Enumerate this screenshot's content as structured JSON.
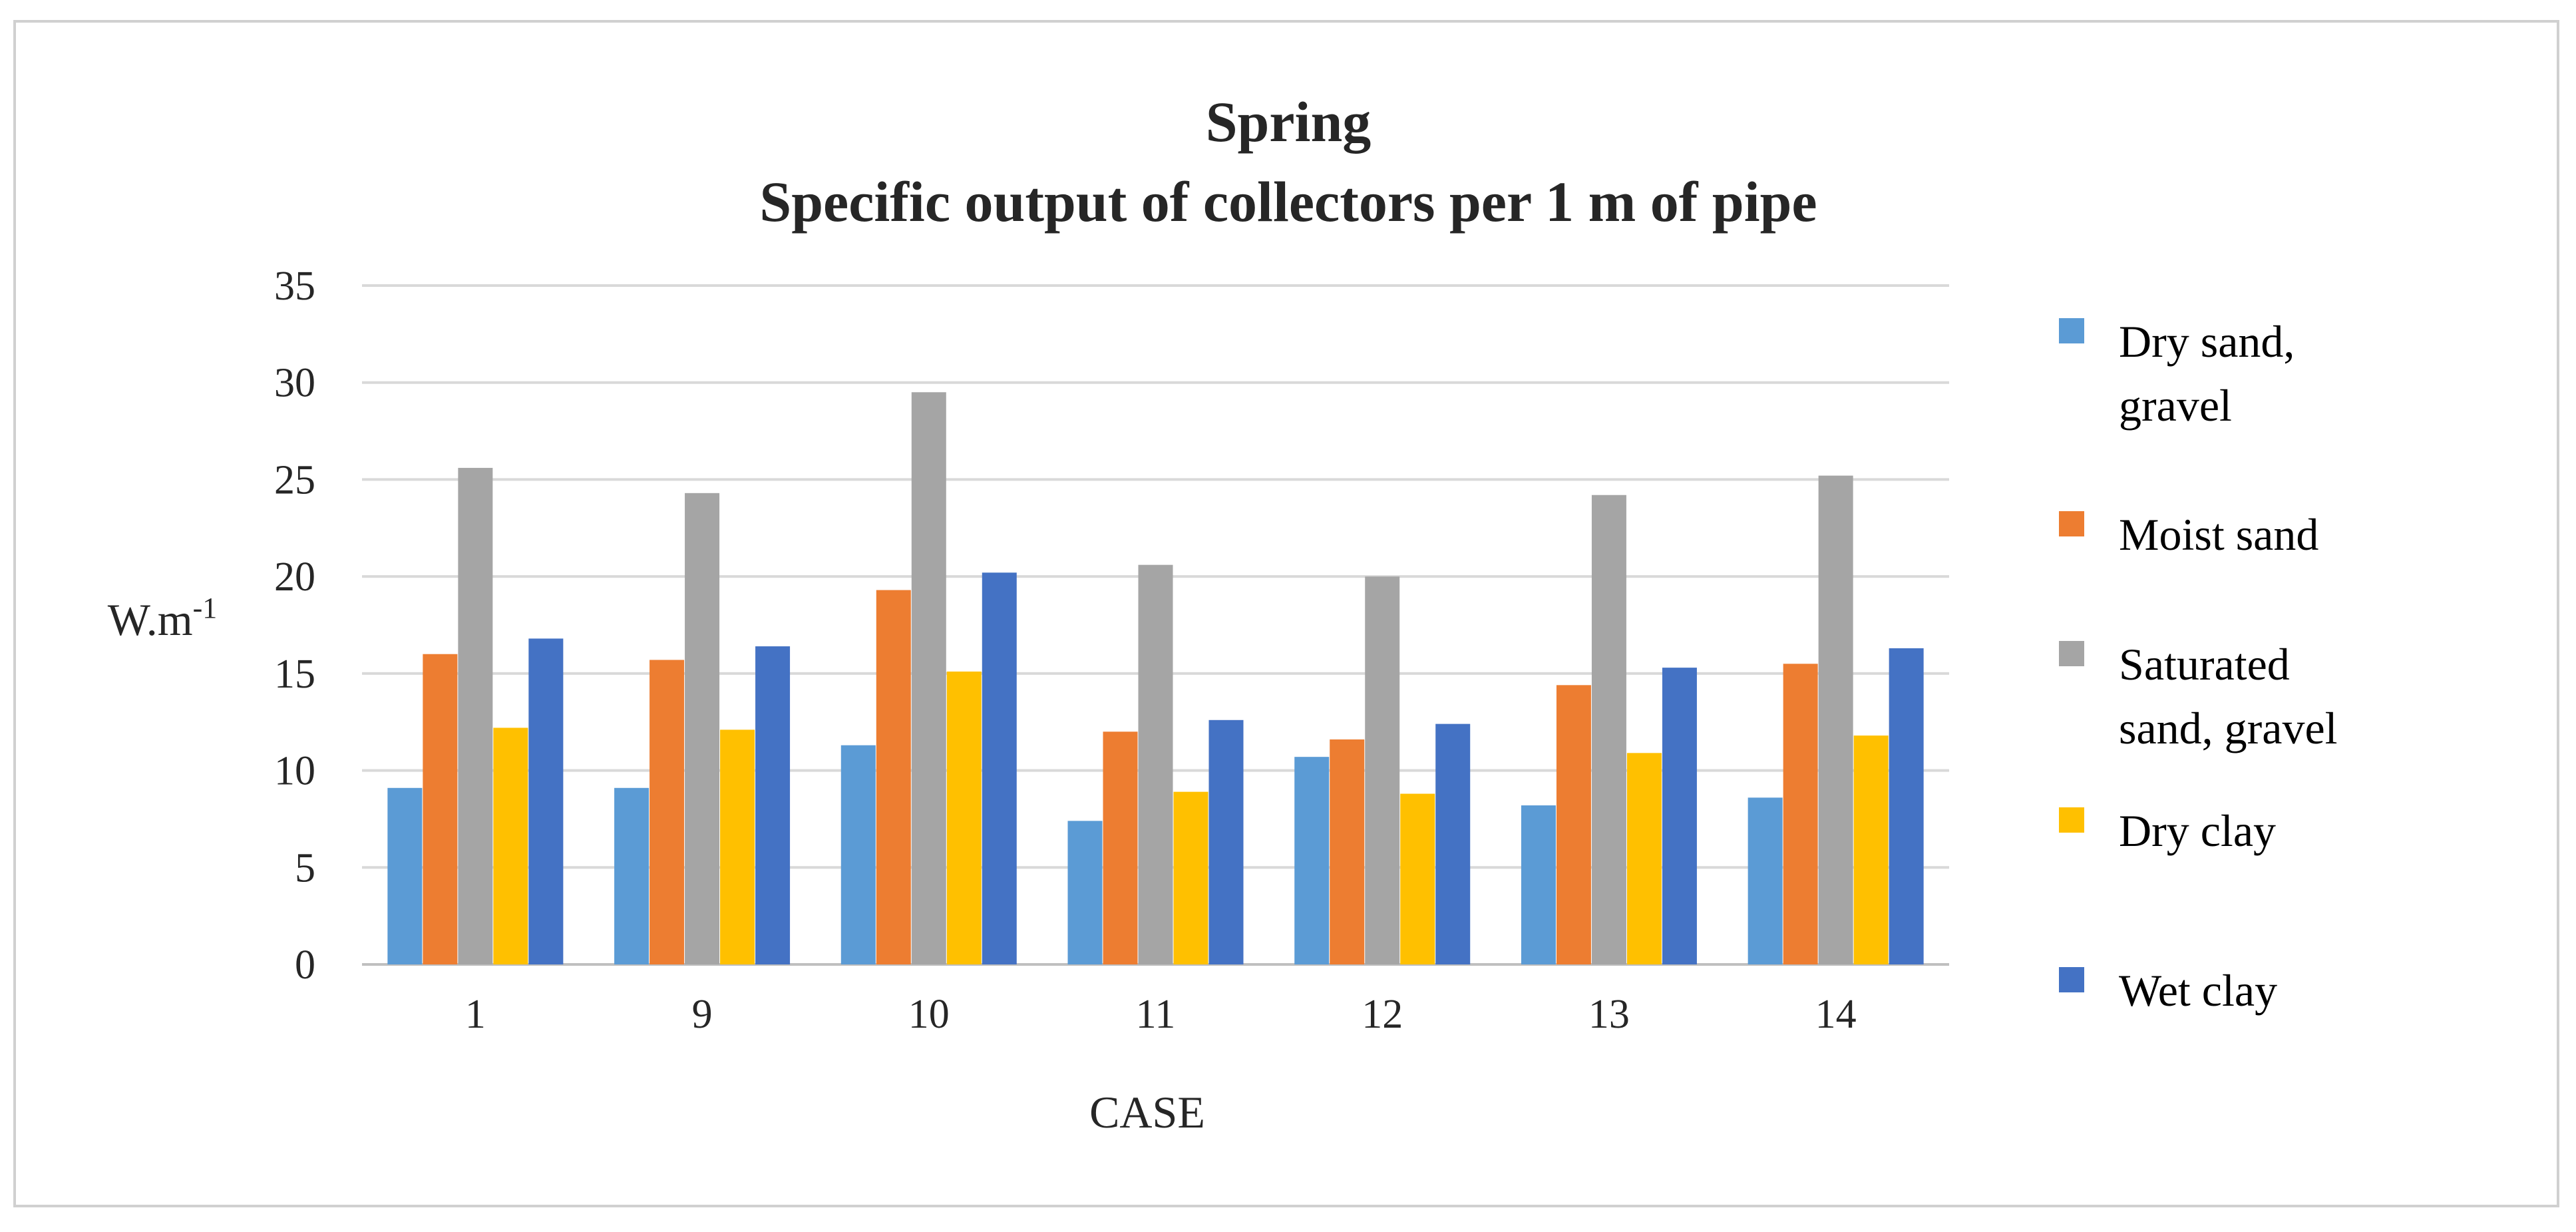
{
  "chart_data": {
    "type": "bar",
    "title": [
      "Spring",
      "Specific output of collectors per 1 m of pipe"
    ],
    "xlabel": "CASE",
    "ylabel": {
      "base": "W.m",
      "sup": "-1"
    },
    "categories": [
      "1",
      "9",
      "10",
      "11",
      "12",
      "13",
      "14"
    ],
    "ylim": [
      0,
      35
    ],
    "yticks": [
      0,
      5,
      10,
      15,
      20,
      25,
      30,
      35
    ],
    "grid": true,
    "legend_position": "right",
    "series": [
      {
        "name": "Dry sand, gravel",
        "legend_lines": [
          "Dry sand,",
          "gravel"
        ],
        "color": "#5B9BD5",
        "values": [
          9.1,
          9.1,
          11.3,
          7.4,
          10.7,
          8.2,
          8.6
        ]
      },
      {
        "name": "Moist sand",
        "legend_lines": [
          "Moist sand"
        ],
        "color": "#ED7D31",
        "values": [
          16.0,
          15.7,
          19.3,
          12.0,
          11.6,
          14.4,
          15.5
        ]
      },
      {
        "name": "Saturated sand, gravel",
        "legend_lines": [
          "Saturated",
          "sand, gravel"
        ],
        "color": "#A5A5A5",
        "values": [
          25.6,
          24.3,
          29.5,
          20.6,
          20.0,
          24.2,
          25.2
        ]
      },
      {
        "name": "Dry clay",
        "legend_lines": [
          "Dry clay"
        ],
        "color": "#FFC000",
        "values": [
          12.2,
          12.1,
          15.1,
          8.9,
          8.8,
          10.9,
          11.8
        ]
      },
      {
        "name": "Wet clay",
        "legend_lines": [
          "Wet clay"
        ],
        "color": "#4472C4",
        "values": [
          16.8,
          16.4,
          20.2,
          12.6,
          12.4,
          15.3,
          16.3
        ]
      }
    ]
  }
}
